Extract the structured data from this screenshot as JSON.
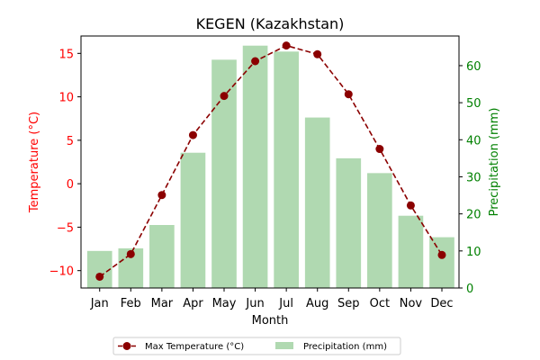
{
  "chart_data": {
    "type": "bar+line",
    "title": "KEGEN (Kazakhstan)",
    "xlabel": "Month",
    "ylabel_left": "Temperature (°C)",
    "ylabel_right": "Precipitation (mm)",
    "categories": [
      "Jan",
      "Feb",
      "Mar",
      "Apr",
      "May",
      "Jun",
      "Jul",
      "Aug",
      "Sep",
      "Oct",
      "Nov",
      "Dec"
    ],
    "series": [
      {
        "name": "Max Temperature (°C)",
        "type": "line",
        "axis": "left",
        "color": "#8b0000",
        "values": [
          -10.7,
          -8.1,
          -1.3,
          5.6,
          10.1,
          14.1,
          15.9,
          14.9,
          10.3,
          4.0,
          -2.5,
          -8.2
        ]
      },
      {
        "name": "Precipitation (mm)",
        "type": "bar",
        "axis": "right",
        "color": "#b0d9b1",
        "values": [
          10,
          10.7,
          17,
          36.5,
          61.6,
          65.4,
          63.8,
          46,
          35,
          31,
          19.5,
          13.7
        ]
      }
    ],
    "ylim_left": [
      -12,
      17
    ],
    "ylim_right": [
      0,
      68
    ],
    "yticks_left": [
      -10,
      -5,
      0,
      5,
      10,
      15
    ],
    "yticks_right": [
      0,
      10,
      20,
      30,
      40,
      50,
      60
    ],
    "left_axis_color": "#ff0000",
    "right_axis_color": "#008000",
    "grid": false,
    "legend_position": "bottom-center"
  }
}
